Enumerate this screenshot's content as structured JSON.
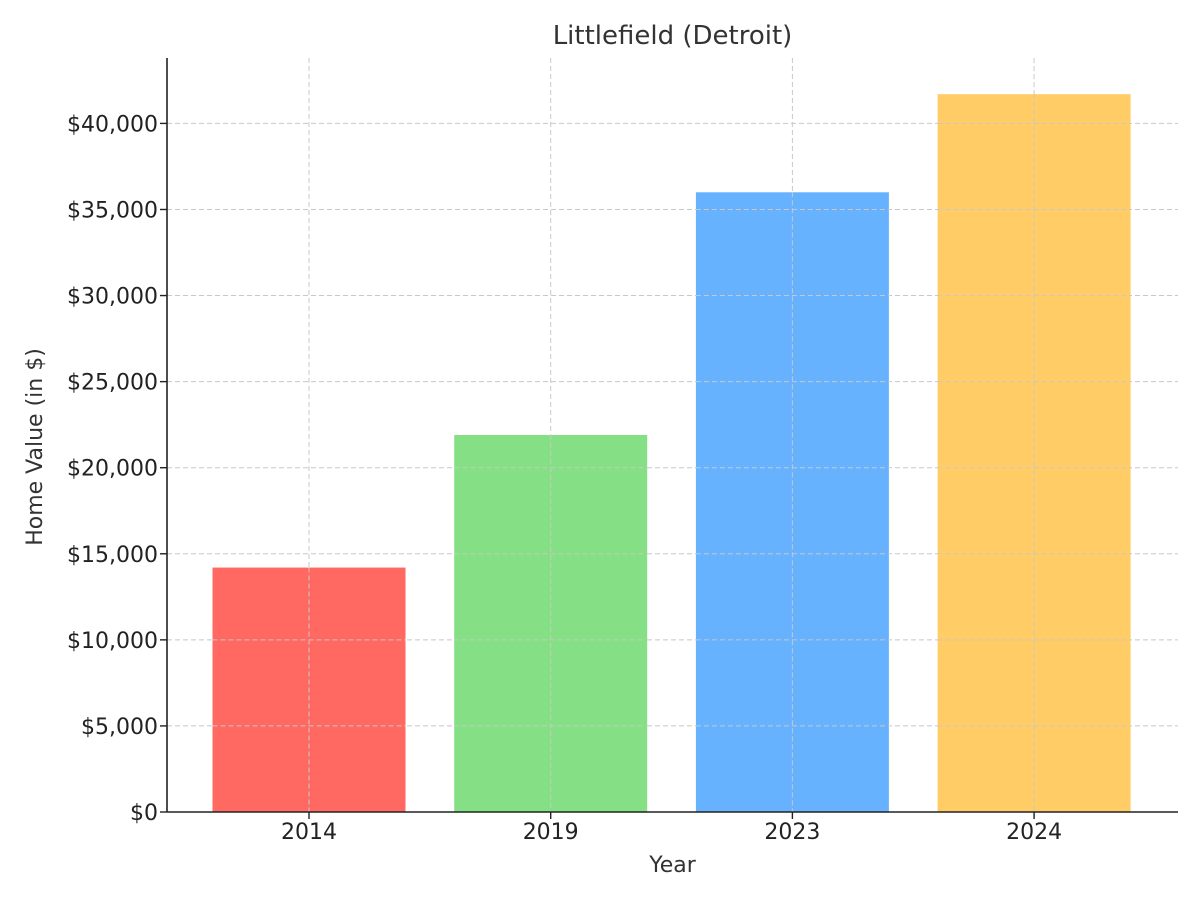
{
  "chart_data": {
    "type": "bar",
    "title": "Littlefield (Detroit)",
    "xlabel": "Year",
    "ylabel": "Home Value (in $)",
    "categories": [
      "2014",
      "2019",
      "2023",
      "2024"
    ],
    "values": [
      14200,
      21900,
      36000,
      41700
    ],
    "colors": [
      "#ff6961",
      "#85e085",
      "#66b2ff",
      "#ffcc66"
    ],
    "ylim": [
      0,
      43800
    ],
    "yticks": [
      0,
      5000,
      10000,
      15000,
      20000,
      25000,
      30000,
      35000,
      40000
    ],
    "ytick_labels": [
      "$0",
      "$5,000",
      "$10,000",
      "$15,000",
      "$20,000",
      "$25,000",
      "$30,000",
      "$35,000",
      "$40,000"
    ],
    "grid": true,
    "legend": "none"
  }
}
